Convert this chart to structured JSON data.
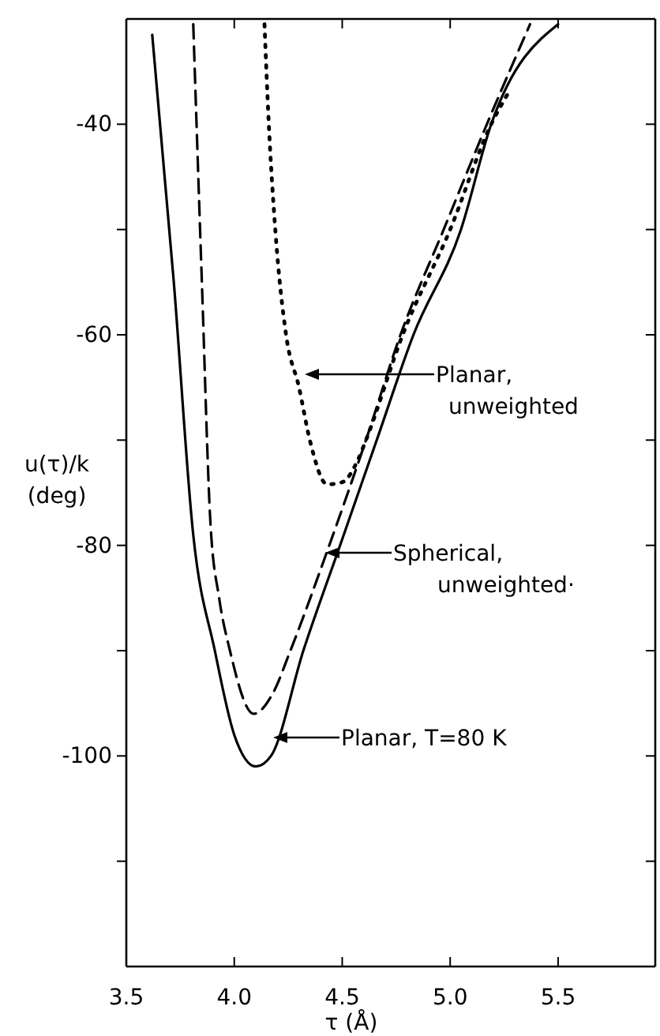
{
  "chart_data": {
    "type": "line",
    "xlabel": "τ (Å)",
    "ylabel": "u(τ)/k\n(deg)",
    "xlim": [
      3.5,
      5.95
    ],
    "ylim": [
      -120,
      -30
    ],
    "xticks": [
      3.5,
      {
        "value": 4,
        "label": "4.0"
      },
      4.5,
      {
        "value": 5,
        "label": "5.0"
      },
      5.5
    ],
    "yticks": [
      {
        "value": -110,
        "label": null
      },
      {
        "value": -100,
        "label": "-100"
      },
      {
        "value": -90,
        "label": null
      },
      {
        "value": -80,
        "label": "-80"
      },
      {
        "value": -70,
        "label": null
      },
      {
        "value": -60,
        "label": "-60"
      },
      {
        "value": -50,
        "label": null
      },
      {
        "value": -40,
        "label": "-40"
      }
    ],
    "grid": false,
    "marker": "none",
    "series": [
      {
        "color": "#000000",
        "line_style": "solid",
        "x": [
          3.62,
          3.72,
          3.81,
          3.91,
          4.0,
          4.1,
          4.17,
          4.32,
          4.49,
          4.66,
          4.83,
          5.05,
          5.19,
          5.5
        ],
        "values": [
          -31.5,
          -55,
          -79,
          -90,
          -98,
          -101,
          -100,
          -90,
          -80,
          -70,
          -60,
          -50,
          -40,
          -30.5
        ]
      },
      {
        "color": "#000000",
        "line_style": "dashed",
        "x": [
          3.81,
          3.85,
          3.89,
          3.93,
          3.98,
          4.09,
          4.18,
          4.26,
          4.44,
          4.61,
          4.77,
          4.97,
          5.17,
          5.37
        ],
        "values": [
          -30.5,
          -55,
          -78,
          -85,
          -90,
          -96,
          -94,
          -90,
          -80,
          -70,
          -60,
          -50,
          -40,
          -30.5
        ]
      },
      {
        "color": "#000000",
        "line_style": "dotted",
        "x": [
          4.14,
          4.16,
          4.19,
          4.24,
          4.3,
          4.35,
          4.43,
          4.5,
          4.57,
          4.61,
          4.78,
          5.0,
          5.19,
          5.27
        ],
        "values": [
          -30.5,
          -40,
          -50,
          -60,
          -65,
          -70,
          -74.2,
          -74,
          -72,
          -70,
          -60,
          -50,
          -40,
          -37
        ]
      }
    ],
    "annotations": [
      "Planar,\nunweighted",
      "Spherical,\nunweighted·",
      "Planar,  T=80 K"
    ]
  }
}
